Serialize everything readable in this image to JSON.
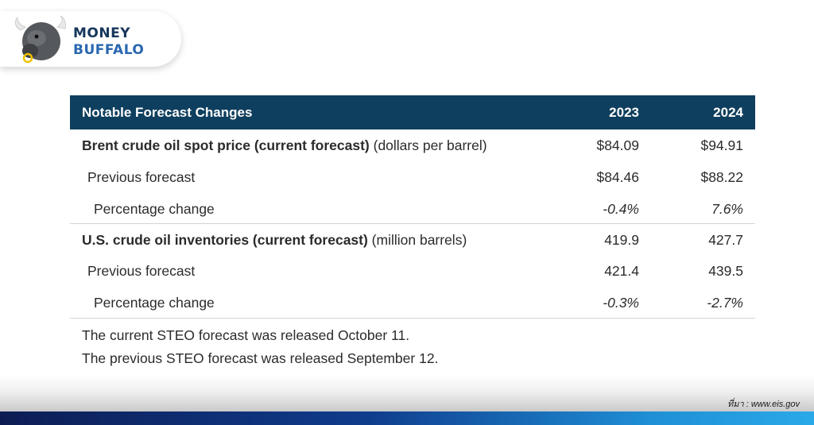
{
  "logo": {
    "line1": "MONEY",
    "line2": "BUFFALO"
  },
  "table": {
    "header": {
      "title": "Notable Forecast Changes",
      "col1": "2023",
      "col2": "2024"
    },
    "brent": {
      "label_bold": "Brent crude oil spot price (current forecast)",
      "label_unit": " (dollars per barrel)",
      "v2023": "$84.09",
      "v2024": "$94.91",
      "previous": {
        "label": "Previous forecast",
        "v2023": "$84.46",
        "v2024": "$88.22"
      },
      "pct": {
        "label": "Percentage change",
        "v2023": "-0.4%",
        "v2024": "7.6%"
      }
    },
    "inventories": {
      "label_bold": "U.S. crude oil inventories (current forecast)",
      "label_unit": " (million barrels)",
      "v2023": "419.9",
      "v2024": "427.7",
      "previous": {
        "label": "Previous forecast",
        "v2023": "421.4",
        "v2024": "439.5"
      },
      "pct": {
        "label": "Percentage change",
        "v2023": "-0.3%",
        "v2024": "-2.7%"
      }
    }
  },
  "notes": {
    "current": "The current STEO forecast was released October 11.",
    "previous": "The previous STEO forecast was released September 12."
  },
  "source": "ที่มา : www.eis.gov",
  "colors": {
    "header_bg": "#0f3f5e",
    "logo_dark": "#17365d",
    "logo_blue": "#2a67b0"
  }
}
